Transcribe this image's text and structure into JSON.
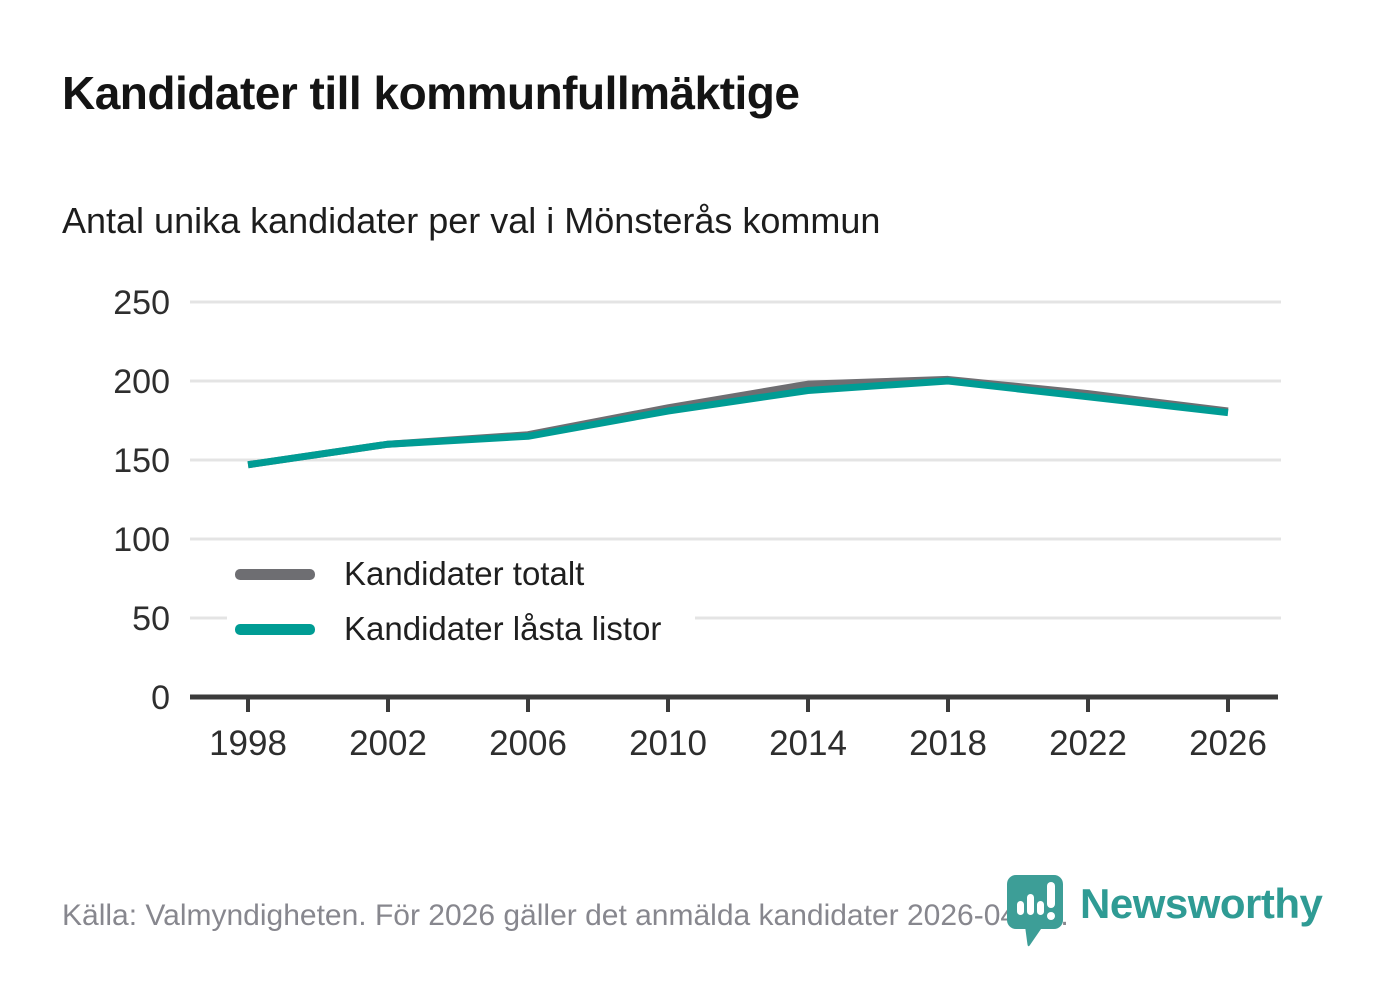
{
  "header": {
    "title": "Kandidater till kommunfullmäktige",
    "subtitle": "Antal unika kandidater per val i Mönsterås kommun"
  },
  "chart_data": {
    "type": "line",
    "categories": [
      "1998",
      "2002",
      "2006",
      "2010",
      "2014",
      "2018",
      "2022",
      "2026"
    ],
    "series": [
      {
        "name": "Kandidater totalt",
        "color": "#6e6e72",
        "values": [
          147,
          160,
          166,
          183,
          198,
          201,
          192,
          181
        ]
      },
      {
        "name": "Kandidater låsta listor",
        "color": "#009c94",
        "values": [
          147,
          160,
          165,
          181,
          194,
          200,
          190,
          180
        ]
      }
    ],
    "title": "Kandidater till kommunfullmäktige",
    "xlabel": "",
    "ylabel": "",
    "ylim": [
      0,
      250
    ],
    "yticks": [
      0,
      50,
      100,
      150,
      200,
      250
    ],
    "grid": true,
    "legend_position": "inside-lower-left"
  },
  "colors": {
    "accent_teal": "#009c94",
    "series_gray": "#6e6e72",
    "gridline": "#e4e4e4",
    "axis": "#3b3b3b",
    "tick_text": "#2e2e2e",
    "footer_text": "#87878e",
    "brand_teal": "#2f9b94",
    "brand_pin": "#3d9e97"
  },
  "footer": {
    "source": "Källa: Valmyndigheten. För 2026 gäller det anmälda kandidater 2026-04-10.",
    "brand": "Newsworthy"
  }
}
